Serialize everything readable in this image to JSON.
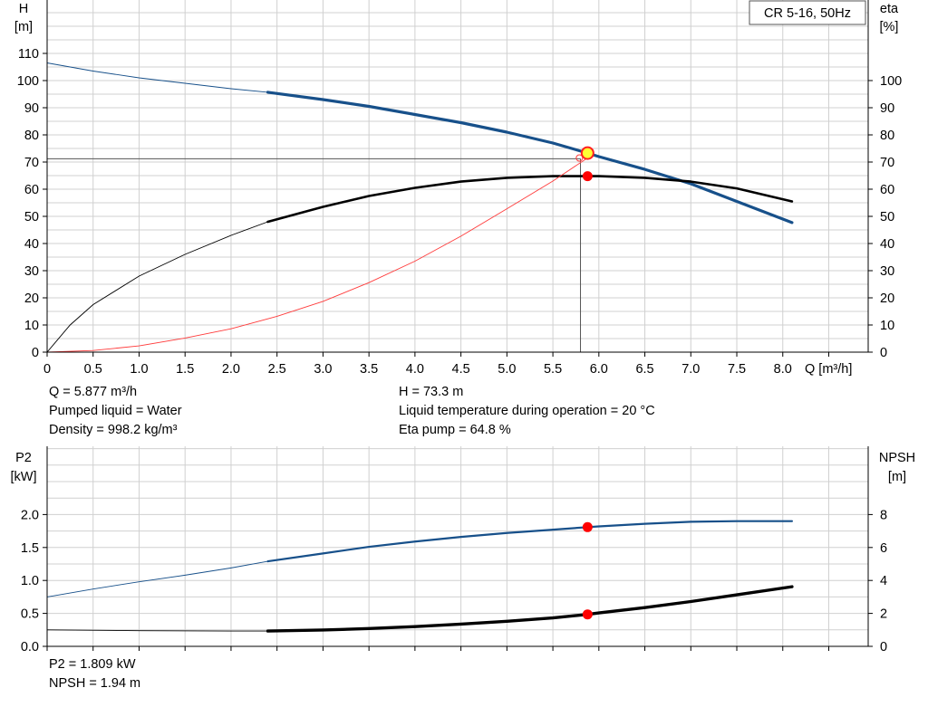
{
  "colors": {
    "grid": "#d0d0d0",
    "frame": "#000000",
    "head": "#17508a",
    "eta": "#000000",
    "npsh_eta_mark": "#ff0000",
    "system": "#ff3b3b",
    "op_fill": "#ffff33",
    "p2": "#17508a",
    "npsh": "#000000"
  },
  "legend_box": "CR 5-16, 50Hz",
  "chart_data": [
    {
      "type": "line",
      "x_label": "Q [m³/h]",
      "y_label_left": [
        "H",
        "[m]"
      ],
      "y_label_right": [
        "eta",
        "[%]"
      ],
      "xlim": [
        0,
        8.5
      ],
      "ylim": [
        0,
        115
      ],
      "x_ticks": [
        "0",
        "0.5",
        "1.0",
        "1.5",
        "2.0",
        "2.5",
        "3.0",
        "3.5",
        "4.0",
        "4.5",
        "5.0",
        "5.5",
        "6.0",
        "6.5",
        "7.0",
        "7.5",
        "8.0"
      ],
      "y_ticks_left": [
        "0",
        "10",
        "20",
        "30",
        "40",
        "50",
        "60",
        "70",
        "80",
        "90",
        "100",
        "110"
      ],
      "y_ticks_right": [
        "0",
        "10",
        "20",
        "30",
        "40",
        "50",
        "60",
        "70",
        "80",
        "90",
        "100"
      ],
      "grid": true,
      "series": [
        {
          "key": "H",
          "color": "#17508a",
          "bold_from": 2.4,
          "x": [
            0,
            0.5,
            1.0,
            1.5,
            2.0,
            2.4,
            3.0,
            3.5,
            4.0,
            4.5,
            5.0,
            5.5,
            5.877,
            6.0,
            6.5,
            7.0,
            7.5,
            8.1
          ],
          "y": [
            106.5,
            103.5,
            101.0,
            99.0,
            97.0,
            95.7,
            93.0,
            90.5,
            87.5,
            84.5,
            81.0,
            77.0,
            73.3,
            72.0,
            67.3,
            62.0,
            55.5,
            47.7
          ]
        },
        {
          "key": "eta",
          "color": "#000000",
          "bold_from": 2.4,
          "x": [
            0,
            0.25,
            0.5,
            1.0,
            1.5,
            2.0,
            2.4,
            3.0,
            3.5,
            4.0,
            4.5,
            5.0,
            5.5,
            5.877,
            6.0,
            6.5,
            7.0,
            7.5,
            8.1
          ],
          "y": [
            0,
            10,
            17.5,
            28,
            36,
            43,
            48,
            53.5,
            57.5,
            60.5,
            62.8,
            64.2,
            64.8,
            64.8,
            64.8,
            64.2,
            62.8,
            60.3,
            55.5
          ]
        },
        {
          "key": "system",
          "color": "#ff3b3b",
          "bold_from": null,
          "x": [
            0,
            0.5,
            1.0,
            1.5,
            2.0,
            2.5,
            3.0,
            3.5,
            4.0,
            4.5,
            5.0,
            5.5,
            5.877
          ],
          "y": [
            0,
            0.6,
            2.3,
            5.2,
            8.6,
            13.2,
            18.7,
            25.6,
            33.5,
            42.7,
            52.8,
            63.0,
            71.5
          ]
        }
      ],
      "guide_lines": {
        "q": 5.8,
        "h": 71.2
      },
      "operating_point": {
        "q": 5.877,
        "h": 73.3,
        "eta": 64.8
      }
    },
    {
      "type": "line",
      "x_label": "",
      "y_label_left": [
        "P2",
        "[kW]"
      ],
      "y_label_right": [
        "NPSH",
        "[m]"
      ],
      "xlim": [
        0,
        8.5
      ],
      "ylim": [
        0,
        2.5
      ],
      "ylim_right": [
        0,
        10
      ],
      "y_ticks_left": [
        "0.0",
        "0.5",
        "1.0",
        "1.5",
        "2.0"
      ],
      "y_ticks_right": [
        "0",
        "2",
        "4",
        "6",
        "8"
      ],
      "grid": true,
      "series": [
        {
          "key": "P2",
          "color": "#17508a",
          "bold_from": 2.4,
          "x": [
            0,
            0.5,
            1.0,
            1.5,
            2.0,
            2.4,
            3.0,
            3.5,
            4.0,
            4.5,
            5.0,
            5.5,
            5.877,
            6.0,
            6.5,
            7.0,
            7.5,
            8.1
          ],
          "y": [
            0.75,
            0.87,
            0.98,
            1.08,
            1.19,
            1.29,
            1.41,
            1.51,
            1.59,
            1.66,
            1.72,
            1.77,
            1.809,
            1.82,
            1.86,
            1.89,
            1.9,
            1.9
          ]
        },
        {
          "key": "NPSH",
          "color": "#000000",
          "bold_from": 2.4,
          "right_axis": true,
          "x": [
            0,
            1.0,
            2.0,
            2.4,
            3.0,
            3.5,
            4.0,
            4.5,
            5.0,
            5.5,
            5.877,
            6.0,
            6.5,
            7.0,
            7.5,
            8.1
          ],
          "y": [
            1.0,
            0.95,
            0.93,
            0.93,
            0.99,
            1.08,
            1.2,
            1.35,
            1.52,
            1.73,
            1.94,
            2.03,
            2.35,
            2.72,
            3.13,
            3.62
          ]
        }
      ],
      "operating_point": {
        "q": 5.877,
        "p2": 1.809,
        "npsh": 1.94
      }
    }
  ],
  "info_top": {
    "q": "Q = 5.877 m³/h",
    "liquid": "Pumped liquid = Water",
    "density": "Density = 998.2 kg/m³",
    "h": "H = 73.3 m",
    "temp": "Liquid temperature during operation = 20 °C",
    "eta": "Eta pump = 64.8 %"
  },
  "info_bottom": {
    "p2": "P2 = 1.809 kW",
    "npsh": "NPSH = 1.94 m"
  }
}
